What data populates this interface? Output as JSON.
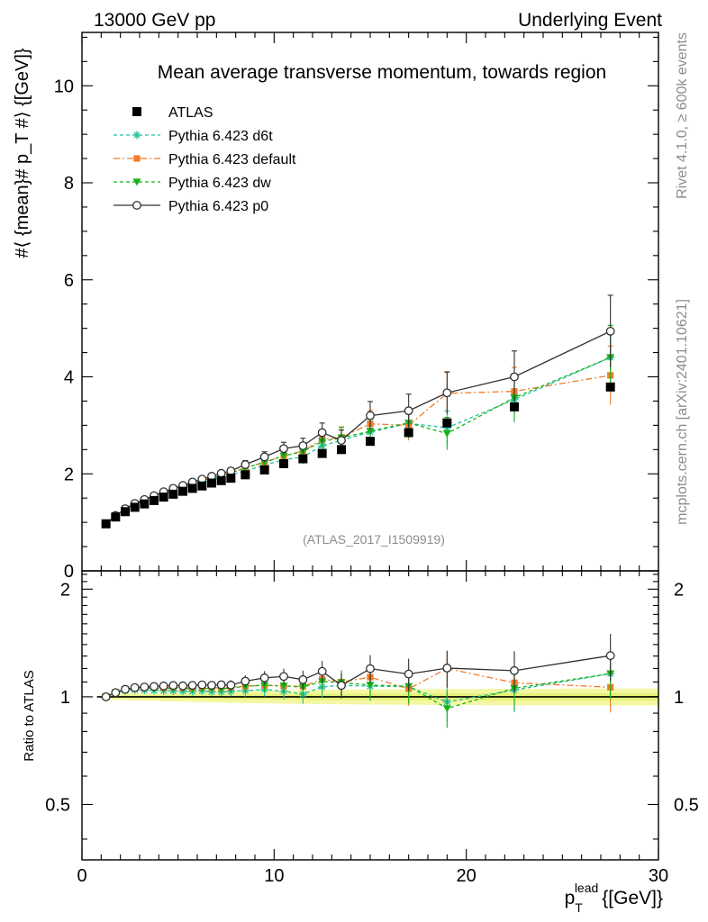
{
  "header": {
    "left": "13000 GeV pp",
    "right": "Underlying Event"
  },
  "side_text": {
    "rivet": "Rivet 4.1.0, ≥ 600k events",
    "mcplots": "mcplots.cern.ch [arXiv:2401.10621]"
  },
  "chart_data": {
    "type": "scatter",
    "title": "Mean average transverse momentum, towards region",
    "watermark": "(ATLAS_2017_I1509919)",
    "xlabel_main": "p",
    "xlabel_sub": "T",
    "xlabel_sup": "lead",
    "xlabel_unit": "{[GeV]}",
    "ylabel": "#⟨ {mean}# p_T #⟩ {[GeV]}",
    "ratio_ylabel": "Ratio to ATLAS",
    "xlim": [
      0,
      30
    ],
    "ylim": [
      0,
      11.1
    ],
    "ratio_ylim": [
      0.35,
      2.25
    ],
    "xticks": [
      0,
      10,
      20,
      30
    ],
    "yticks": [
      0,
      2,
      4,
      6,
      8,
      10
    ],
    "ratio_yticks": [
      0.5,
      1,
      2
    ],
    "ratio_tick_labels": [
      "0.5",
      "1",
      "2"
    ],
    "x": [
      1.25,
      1.75,
      2.25,
      2.75,
      3.25,
      3.75,
      4.25,
      4.75,
      5.25,
      5.75,
      6.25,
      6.75,
      7.25,
      7.75,
      8.5,
      9.5,
      10.5,
      11.5,
      12.5,
      13.5,
      15.0,
      17.0,
      19.0,
      22.5,
      27.5
    ],
    "reference": {
      "name": "ATLAS",
      "color": "#000000",
      "values": [
        0.97,
        1.11,
        1.22,
        1.31,
        1.38,
        1.45,
        1.52,
        1.58,
        1.64,
        1.7,
        1.75,
        1.81,
        1.86,
        1.91,
        1.98,
        2.08,
        2.21,
        2.31,
        2.42,
        2.5,
        2.67,
        2.85,
        3.05,
        3.38,
        3.79
      ]
    },
    "series": [
      {
        "name": "Pythia 6.423 d6t",
        "color": "#1fbf9f",
        "dash": "4,3",
        "marker": "asterisk",
        "values": [
          0.97,
          1.14,
          1.27,
          1.37,
          1.44,
          1.51,
          1.58,
          1.64,
          1.7,
          1.76,
          1.82,
          1.87,
          1.92,
          1.98,
          2.06,
          2.18,
          2.29,
          2.35,
          2.58,
          2.69,
          2.86,
          3.04,
          2.95,
          3.53,
          4.4
        ]
      },
      {
        "name": "Pythia 6.423 default",
        "color": "#f07c28",
        "dash": "7,3,2,3",
        "marker": "square",
        "values": [
          0.97,
          1.14,
          1.28,
          1.38,
          1.46,
          1.54,
          1.61,
          1.68,
          1.74,
          1.8,
          1.86,
          1.92,
          1.97,
          2.03,
          2.12,
          2.24,
          2.37,
          2.47,
          2.71,
          2.75,
          3.03,
          3.0,
          3.66,
          3.7,
          4.03
        ]
      },
      {
        "name": "Pythia 6.423 dw",
        "color": "#16b216",
        "dash": "4,3",
        "marker": "triangle-down",
        "values": [
          0.97,
          1.14,
          1.28,
          1.38,
          1.46,
          1.53,
          1.6,
          1.67,
          1.73,
          1.79,
          1.85,
          1.91,
          1.96,
          2.02,
          2.12,
          2.24,
          2.37,
          2.46,
          2.67,
          2.74,
          2.88,
          3.05,
          2.83,
          3.57,
          4.4
        ]
      },
      {
        "name": "Pythia 6.423 p0",
        "color": "#303030",
        "dash": "",
        "marker": "circle-open",
        "values": [
          0.97,
          1.14,
          1.28,
          1.39,
          1.47,
          1.55,
          1.63,
          1.7,
          1.76,
          1.83,
          1.89,
          1.95,
          2.01,
          2.06,
          2.19,
          2.35,
          2.52,
          2.58,
          2.85,
          2.69,
          3.2,
          3.3,
          3.67,
          4.0,
          4.94
        ]
      }
    ]
  }
}
